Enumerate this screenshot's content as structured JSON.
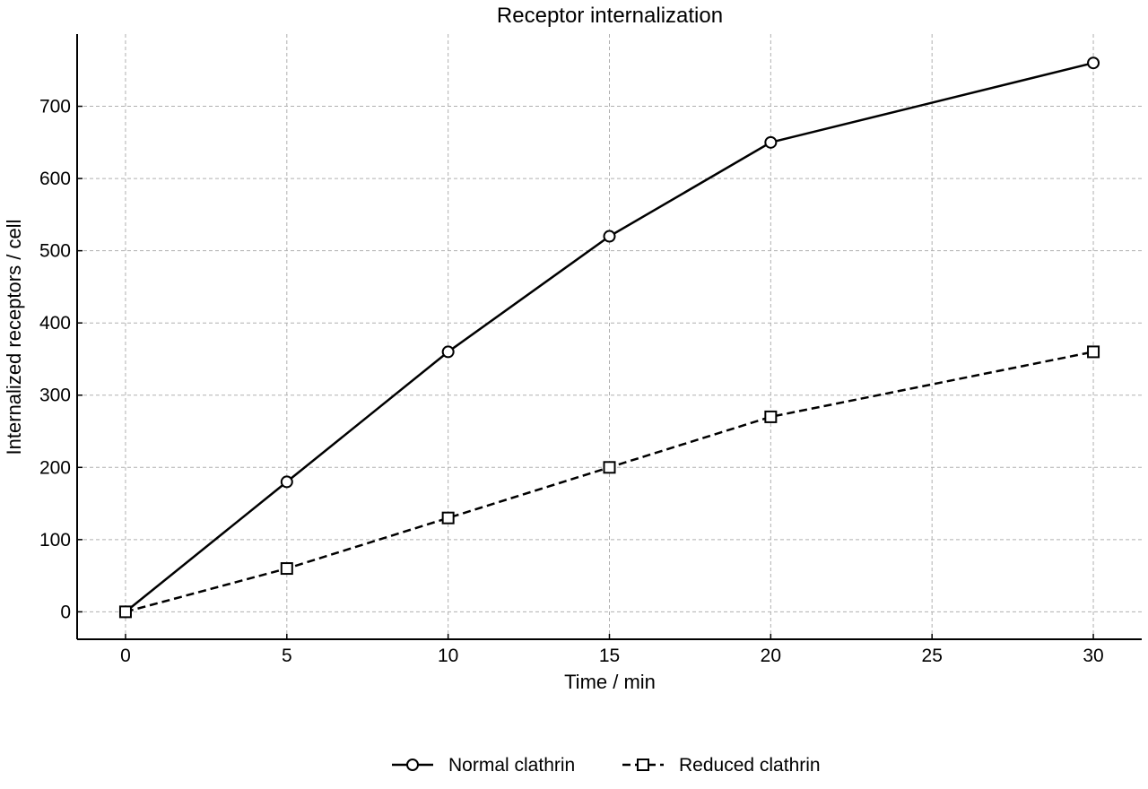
{
  "chart_data": {
    "type": "line",
    "title": "Receptor internalization",
    "xlabel": "Time / min",
    "ylabel": "Internalized receptors / cell",
    "xlim": [
      -1.5,
      31.5
    ],
    "ylim": [
      -38,
      800
    ],
    "xticks": [
      0,
      5,
      10,
      15,
      20,
      25,
      30
    ],
    "yticks": [
      0,
      100,
      200,
      300,
      400,
      500,
      600,
      700
    ],
    "grid": true,
    "legend_position": "bottom-center",
    "series": [
      {
        "name": "Normal clathrin",
        "x": [
          0,
          5,
          10,
          15,
          20,
          30
        ],
        "y": [
          0,
          180,
          360,
          520,
          650,
          760
        ],
        "line_style": "solid",
        "marker": "circle",
        "color": "#000000"
      },
      {
        "name": "Reduced clathrin",
        "x": [
          0,
          5,
          10,
          15,
          20,
          30
        ],
        "y": [
          0,
          60,
          130,
          200,
          270,
          360
        ],
        "line_style": "dashed",
        "marker": "square",
        "color": "#000000"
      }
    ]
  }
}
